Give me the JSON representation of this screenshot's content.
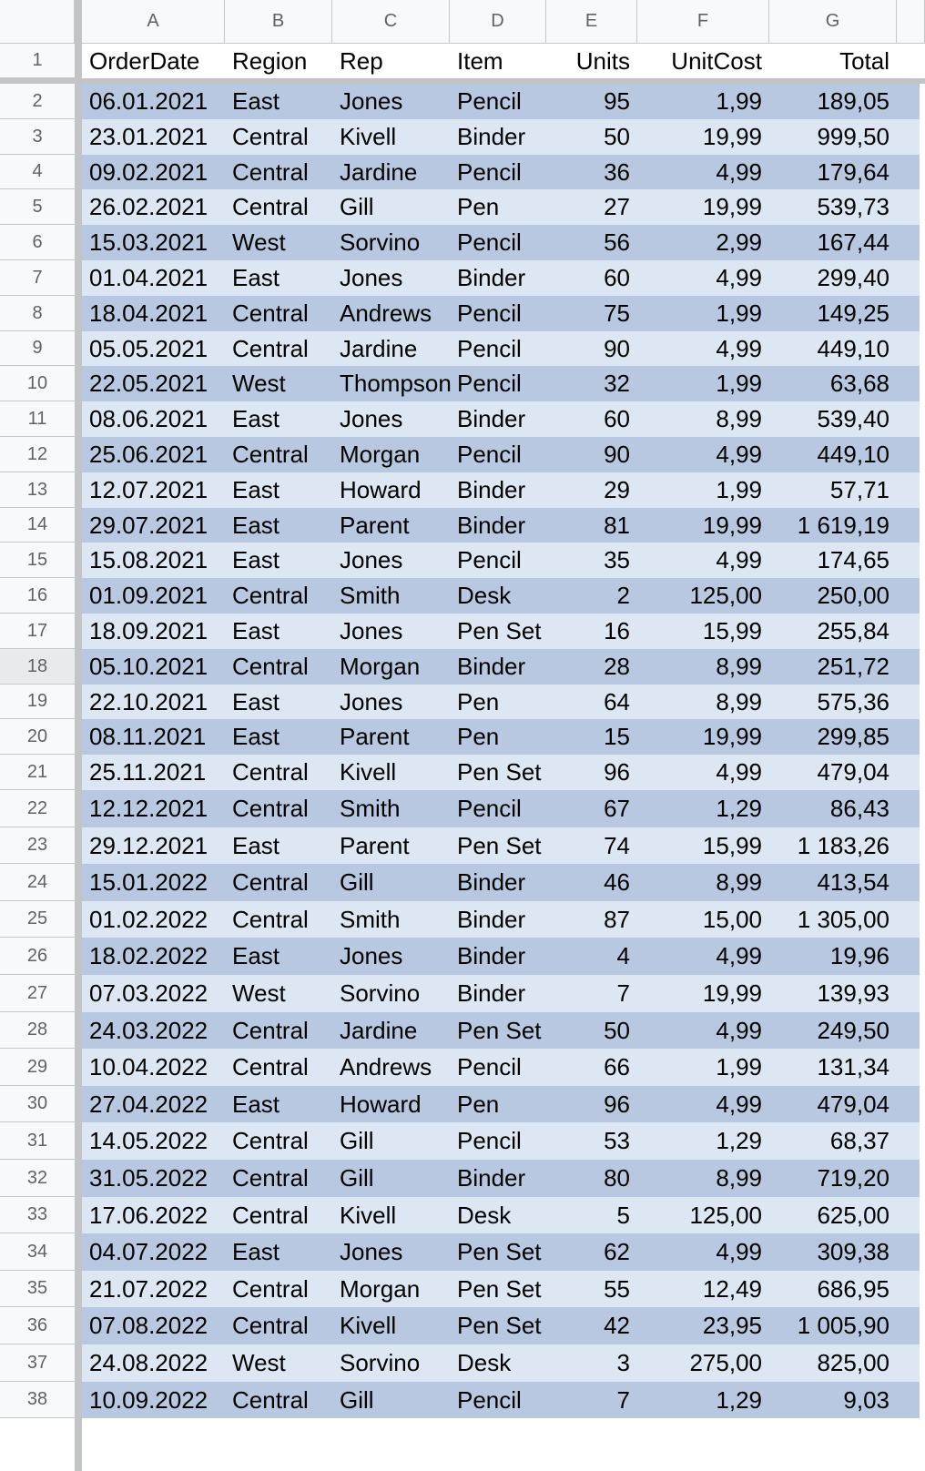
{
  "columns": [
    "A",
    "B",
    "C",
    "D",
    "E",
    "F",
    "G"
  ],
  "header_row_number": "1",
  "header": [
    "OrderDate",
    "Region",
    "Rep",
    "Item",
    "Units",
    "UnitCost",
    "Total"
  ],
  "rows": [
    {
      "num": "2",
      "cells": [
        "06.01.2021",
        "East",
        "Jones",
        "Pencil",
        "95",
        "1,99",
        "189,05"
      ]
    },
    {
      "num": "3",
      "cells": [
        "23.01.2021",
        "Central",
        "Kivell",
        "Binder",
        "50",
        "19,99",
        "999,50"
      ]
    },
    {
      "num": "4",
      "cells": [
        "09.02.2021",
        "Central",
        "Jardine",
        "Pencil",
        "36",
        "4,99",
        "179,64"
      ]
    },
    {
      "num": "5",
      "cells": [
        "26.02.2021",
        "Central",
        "Gill",
        "Pen",
        "27",
        "19,99",
        "539,73"
      ]
    },
    {
      "num": "6",
      "cells": [
        "15.03.2021",
        "West",
        "Sorvino",
        "Pencil",
        "56",
        "2,99",
        "167,44"
      ]
    },
    {
      "num": "7",
      "cells": [
        "01.04.2021",
        "East",
        "Jones",
        "Binder",
        "60",
        "4,99",
        "299,40"
      ]
    },
    {
      "num": "8",
      "cells": [
        "18.04.2021",
        "Central",
        "Andrews",
        "Pencil",
        "75",
        "1,99",
        "149,25"
      ]
    },
    {
      "num": "9",
      "cells": [
        "05.05.2021",
        "Central",
        "Jardine",
        "Pencil",
        "90",
        "4,99",
        "449,10"
      ]
    },
    {
      "num": "10",
      "cells": [
        "22.05.2021",
        "West",
        "Thompson",
        "Pencil",
        "32",
        "1,99",
        "63,68"
      ]
    },
    {
      "num": "11",
      "cells": [
        "08.06.2021",
        "East",
        "Jones",
        "Binder",
        "60",
        "8,99",
        "539,40"
      ]
    },
    {
      "num": "12",
      "cells": [
        "25.06.2021",
        "Central",
        "Morgan",
        "Pencil",
        "90",
        "4,99",
        "449,10"
      ]
    },
    {
      "num": "13",
      "cells": [
        "12.07.2021",
        "East",
        "Howard",
        "Binder",
        "29",
        "1,99",
        "57,71"
      ]
    },
    {
      "num": "14",
      "cells": [
        "29.07.2021",
        "East",
        "Parent",
        "Binder",
        "81",
        "19,99",
        "1 619,19"
      ]
    },
    {
      "num": "15",
      "cells": [
        "15.08.2021",
        "East",
        "Jones",
        "Pencil",
        "35",
        "4,99",
        "174,65"
      ]
    },
    {
      "num": "16",
      "cells": [
        "01.09.2021",
        "Central",
        "Smith",
        "Desk",
        "2",
        "125,00",
        "250,00"
      ]
    },
    {
      "num": "17",
      "cells": [
        "18.09.2021",
        "East",
        "Jones",
        "Pen Set",
        "16",
        "15,99",
        "255,84"
      ]
    },
    {
      "num": "18",
      "cells": [
        "05.10.2021",
        "Central",
        "Morgan",
        "Binder",
        "28",
        "8,99",
        "251,72"
      ]
    },
    {
      "num": "19",
      "cells": [
        "22.10.2021",
        "East",
        "Jones",
        "Pen",
        "64",
        "8,99",
        "575,36"
      ]
    },
    {
      "num": "20",
      "cells": [
        "08.11.2021",
        "East",
        "Parent",
        "Pen",
        "15",
        "19,99",
        "299,85"
      ]
    },
    {
      "num": "21",
      "cells": [
        "25.11.2021",
        "Central",
        "Kivell",
        "Pen Set",
        "96",
        "4,99",
        "479,04"
      ]
    },
    {
      "num": "22",
      "cells": [
        "12.12.2021",
        "Central",
        "Smith",
        "Pencil",
        "67",
        "1,29",
        "86,43"
      ]
    },
    {
      "num": "23",
      "cells": [
        "29.12.2021",
        "East",
        "Parent",
        "Pen Set",
        "74",
        "15,99",
        "1 183,26"
      ]
    },
    {
      "num": "24",
      "cells": [
        "15.01.2022",
        "Central",
        "Gill",
        "Binder",
        "46",
        "8,99",
        "413,54"
      ]
    },
    {
      "num": "25",
      "cells": [
        "01.02.2022",
        "Central",
        "Smith",
        "Binder",
        "87",
        "15,00",
        "1 305,00"
      ]
    },
    {
      "num": "26",
      "cells": [
        "18.02.2022",
        "East",
        "Jones",
        "Binder",
        "4",
        "4,99",
        "19,96"
      ]
    },
    {
      "num": "27",
      "cells": [
        "07.03.2022",
        "West",
        "Sorvino",
        "Binder",
        "7",
        "19,99",
        "139,93"
      ]
    },
    {
      "num": "28",
      "cells": [
        "24.03.2022",
        "Central",
        "Jardine",
        "Pen Set",
        "50",
        "4,99",
        "249,50"
      ]
    },
    {
      "num": "29",
      "cells": [
        "10.04.2022",
        "Central",
        "Andrews",
        "Pencil",
        "66",
        "1,99",
        "131,34"
      ]
    },
    {
      "num": "30",
      "cells": [
        "27.04.2022",
        "East",
        "Howard",
        "Pen",
        "96",
        "4,99",
        "479,04"
      ]
    },
    {
      "num": "31",
      "cells": [
        "14.05.2022",
        "Central",
        "Gill",
        "Pencil",
        "53",
        "1,29",
        "68,37"
      ]
    },
    {
      "num": "32",
      "cells": [
        "31.05.2022",
        "Central",
        "Gill",
        "Binder",
        "80",
        "8,99",
        "719,20"
      ]
    },
    {
      "num": "33",
      "cells": [
        "17.06.2022",
        "Central",
        "Kivell",
        "Desk",
        "5",
        "125,00",
        "625,00"
      ]
    },
    {
      "num": "34",
      "cells": [
        "04.07.2022",
        "East",
        "Jones",
        "Pen Set",
        "62",
        "4,99",
        "309,38"
      ]
    },
    {
      "num": "35",
      "cells": [
        "21.07.2022",
        "Central",
        "Morgan",
        "Pen Set",
        "55",
        "12,49",
        "686,95"
      ]
    },
    {
      "num": "36",
      "cells": [
        "07.08.2022",
        "Central",
        "Kivell",
        "Pen Set",
        "42",
        "23,95",
        "1 005,90"
      ]
    },
    {
      "num": "37",
      "cells": [
        "24.08.2022",
        "West",
        "Sorvino",
        "Desk",
        "3",
        "275,00",
        "825,00"
      ]
    },
    {
      "num": "38",
      "cells": [
        "10.09.2022",
        "Central",
        "Gill",
        "Pencil",
        "7",
        "1,29",
        "9,03"
      ]
    }
  ],
  "selected_row": "18",
  "colors": {
    "band_dark": "#b8c8e0",
    "band_light": "#dde6f3",
    "header_bg": "#f8f9fa",
    "header_text": "#5f6368",
    "grid": "#c7c7c7",
    "freeze_bar": "#c2c4c6"
  }
}
